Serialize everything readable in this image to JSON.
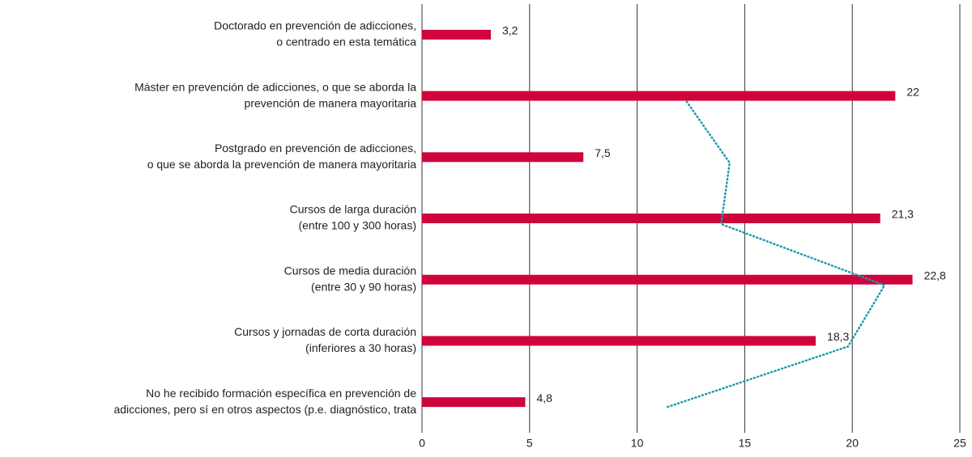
{
  "chart_data": {
    "type": "bar",
    "orientation": "horizontal",
    "categories": [
      [
        "Doctorado en prevención de adicciones,",
        "o centrado en esta temática"
      ],
      [
        "Máster en prevención de adicciones, o que se aborda la",
        "prevención de manera mayoritaria"
      ],
      [
        "Postgrado en prevención de adicciones,",
        "o que se aborda la prevención de manera mayoritaria"
      ],
      [
        "Cursos de larga duración",
        "(entre 100 y 300 horas)"
      ],
      [
        "Cursos de media duración",
        "(entre 30 y 90 horas)"
      ],
      [
        "Cursos y jornadas de corta duración",
        "(inferiores a 30 horas)"
      ],
      [
        "No he recibido formación específica en prevención de",
        "adicciones, pero sí en otros aspectos (p.e. diagnóstico, trata"
      ]
    ],
    "series": [
      {
        "type": "bar",
        "color": "#d0043c",
        "values": [
          3.2,
          22,
          7.5,
          21.3,
          22.8,
          18.3,
          4.8
        ],
        "value_labels": [
          "3,2",
          "22",
          "7,5",
          "21,3",
          "22,8",
          "18,3",
          "4,8"
        ]
      },
      {
        "type": "line",
        "color": "#1a9bb0",
        "style": "dotted",
        "values": [
          null,
          12.3,
          14.3,
          13.9,
          21.5,
          19.8,
          11.3
        ]
      }
    ],
    "xlim": [
      0,
      25
    ],
    "xticks": [
      0,
      5,
      10,
      15,
      20,
      25
    ],
    "grid": true
  }
}
